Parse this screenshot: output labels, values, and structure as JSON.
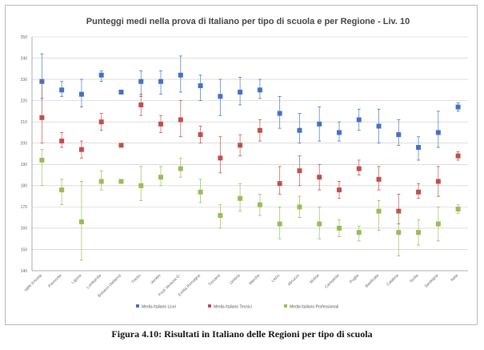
{
  "caption": "Figura 4.10: Risultati in Italiano delle Regioni per tipo di scuola",
  "chart_data": {
    "type": "scatter",
    "title": "Punteggi medi nella prova di Italiano per tipo di scuola e per Regione - Liv. 10",
    "xlabel": "",
    "ylabel": "",
    "ylim": [
      140,
      250
    ],
    "ytick_step": 10,
    "grid": true,
    "legend_position": "bottom",
    "categories": [
      "Valle d'Aosta",
      "Piemonte",
      "Liguria",
      "Lombardia",
      "Bolzano (italiano)",
      "Trento",
      "Veneto",
      "Friuli Venezia G.",
      "Emilia Romagna",
      "Toscana",
      "Umbria",
      "Marche",
      "Lazio",
      "Abruzzo",
      "Molise",
      "Campania",
      "Puglia",
      "Basilicata",
      "Calabria",
      "Sicilia",
      "Sardegna",
      "Italia"
    ],
    "series": [
      {
        "name": "Media Italiano Licei",
        "color": "#4472c4",
        "values": [
          229,
          225,
          223,
          232,
          224,
          229,
          229,
          232,
          227,
          222,
          224,
          225,
          214,
          206,
          209,
          205,
          211,
          208,
          204,
          198,
          205,
          217
        ],
        "lower": [
          221,
          222,
          217,
          229,
          224,
          222,
          223,
          224,
          220,
          213,
          218,
          221,
          207,
          200,
          201,
          201,
          206,
          200,
          199,
          192,
          198,
          215
        ],
        "upper": [
          242,
          229,
          230,
          234,
          224,
          234,
          234,
          241,
          232,
          230,
          231,
          230,
          222,
          214,
          217,
          210,
          216,
          216,
          211,
          203,
          215,
          219
        ]
      },
      {
        "name": "Media Italiano Tecnici",
        "color": "#c0504d",
        "values": [
          212,
          201,
          197,
          210,
          199,
          218,
          209,
          211,
          204,
          193,
          199,
          206,
          181,
          187,
          184,
          178,
          188,
          183,
          168,
          177,
          182,
          194
        ],
        "lower": [
          200,
          198,
          193,
          206,
          199,
          213,
          205,
          203,
          200,
          186,
          194,
          201,
          176,
          180,
          178,
          174,
          185,
          178,
          162,
          174,
          175,
          192
        ],
        "upper": [
          229,
          205,
          201,
          214,
          199,
          223,
          213,
          220,
          208,
          203,
          204,
          211,
          189,
          194,
          190,
          182,
          192,
          189,
          176,
          181,
          189,
          196
        ]
      },
      {
        "name": "Media Italiano Professionali",
        "color": "#9bbb59",
        "values": [
          192,
          178,
          163,
          182,
          182,
          180,
          184,
          188,
          177,
          166,
          174,
          171,
          162,
          170,
          162,
          160,
          158,
          168,
          158,
          158,
          162,
          169
        ],
        "lower": [
          180,
          171,
          145,
          178,
          182,
          173,
          180,
          184,
          172,
          160,
          168,
          166,
          155,
          165,
          155,
          156,
          154,
          159,
          147,
          152,
          154,
          167
        ],
        "upper": [
          197,
          183,
          182,
          187,
          182,
          189,
          189,
          193,
          183,
          171,
          181,
          176,
          170,
          175,
          170,
          164,
          161,
          173,
          167,
          164,
          170,
          171
        ]
      }
    ]
  }
}
